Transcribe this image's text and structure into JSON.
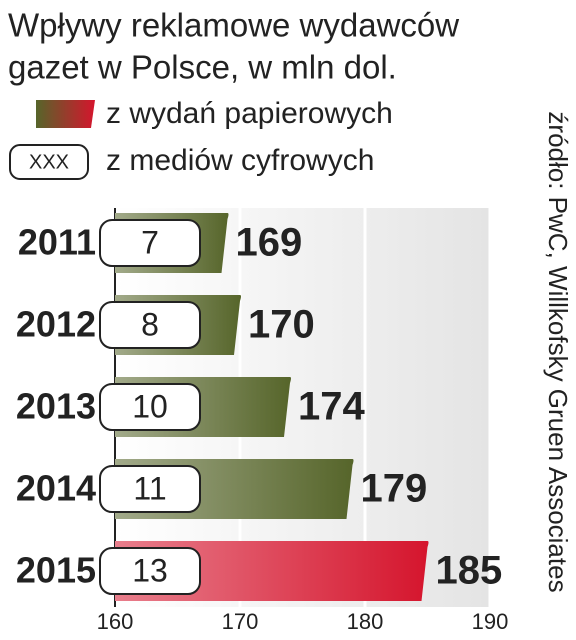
{
  "chart_data": {
    "type": "bar",
    "orientation": "horizontal",
    "title": [
      "Wpływy reklamowe wydawców",
      "gazet w Polsce, w mln dol."
    ],
    "categories": [
      "2011",
      "2012",
      "2013",
      "2014",
      "2015"
    ],
    "series": [
      {
        "name": "z wydań papierowych",
        "values": [
          169,
          170,
          174,
          179,
          185
        ],
        "colors": [
          "#56652a",
          "#56652a",
          "#56652a",
          "#56652a",
          "#d5152d"
        ],
        "label_colors": [
          "#111111",
          "#111111",
          "#111111",
          "#111111",
          "#d5152d"
        ]
      },
      {
        "name": "z mediów cyfrowych",
        "values": [
          7,
          8,
          10,
          11,
          13
        ]
      }
    ],
    "legend_sample": "XXX",
    "xlim": [
      160,
      190
    ],
    "xticks": [
      160,
      170,
      180,
      190
    ],
    "grid": true,
    "source": "źródło: PwC, Willkofsky Gruen Associates"
  }
}
